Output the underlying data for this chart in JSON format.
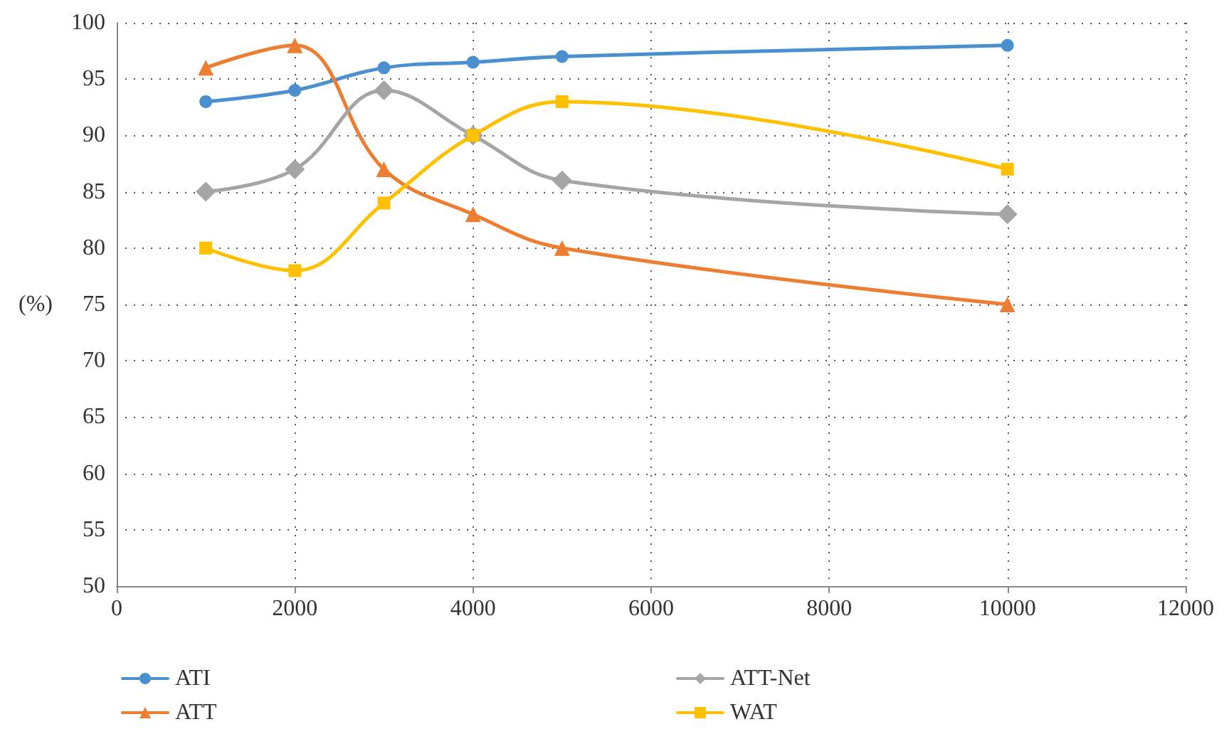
{
  "chart_data": {
    "type": "line",
    "ylabel": "(%)",
    "x": [
      1000,
      2000,
      3000,
      4000,
      5000,
      10000
    ],
    "xlim": [
      0,
      12000
    ],
    "xticks": [
      0,
      2000,
      4000,
      6000,
      8000,
      10000,
      12000
    ],
    "ylim": [
      50,
      100
    ],
    "yticks": [
      50,
      55,
      60,
      65,
      70,
      75,
      80,
      85,
      90,
      95,
      100
    ],
    "grid": true,
    "legend": "bottom",
    "line_style": "solid",
    "series": [
      {
        "name": "ATI",
        "color": "#4a90d0",
        "marker": "circle",
        "values": [
          93,
          94,
          96,
          96.5,
          97,
          98
        ]
      },
      {
        "name": "ATT",
        "color": "#ed7d31",
        "marker": "triangle",
        "values": [
          96,
          98,
          87,
          83,
          80,
          75
        ]
      },
      {
        "name": "ATT-Net",
        "color": "#a5a5a5",
        "marker": "diamond",
        "values": [
          85,
          87,
          94,
          90,
          86,
          83
        ]
      },
      {
        "name": "WAT",
        "color": "#ffc000",
        "marker": "square",
        "values": [
          80,
          78,
          84,
          90,
          93,
          87
        ]
      }
    ]
  }
}
